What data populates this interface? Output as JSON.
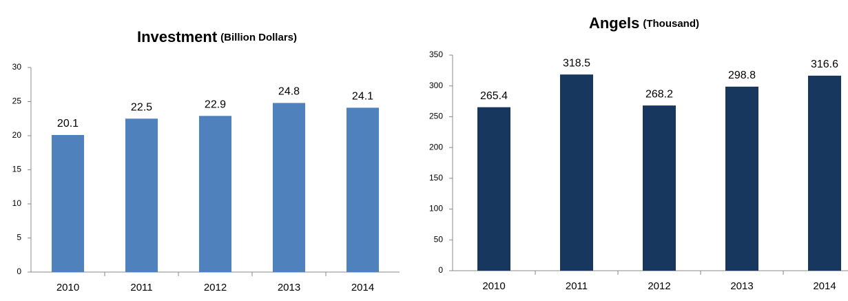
{
  "chart_data": [
    {
      "type": "bar",
      "title": "Investment",
      "title_unit": "(Billion Dollars)",
      "categories": [
        "2010",
        "2011",
        "2012",
        "2013",
        "2014"
      ],
      "values": [
        20.1,
        22.5,
        22.9,
        24.8,
        24.1
      ],
      "color": "#4f81bd",
      "ylim": [
        0,
        30
      ],
      "yticks": [
        0,
        5,
        10,
        15,
        20,
        25,
        30
      ],
      "grid": false
    },
    {
      "type": "bar",
      "title": "Angels",
      "title_unit": "(Thousand)",
      "categories": [
        "2010",
        "2011",
        "2012",
        "2013",
        "2014"
      ],
      "values": [
        265.4,
        318.5,
        268.2,
        298.8,
        316.6
      ],
      "color": "#17375e",
      "ylim": [
        0,
        350
      ],
      "yticks": [
        0,
        50,
        100,
        150,
        200,
        250,
        300,
        350
      ],
      "grid": false
    }
  ]
}
